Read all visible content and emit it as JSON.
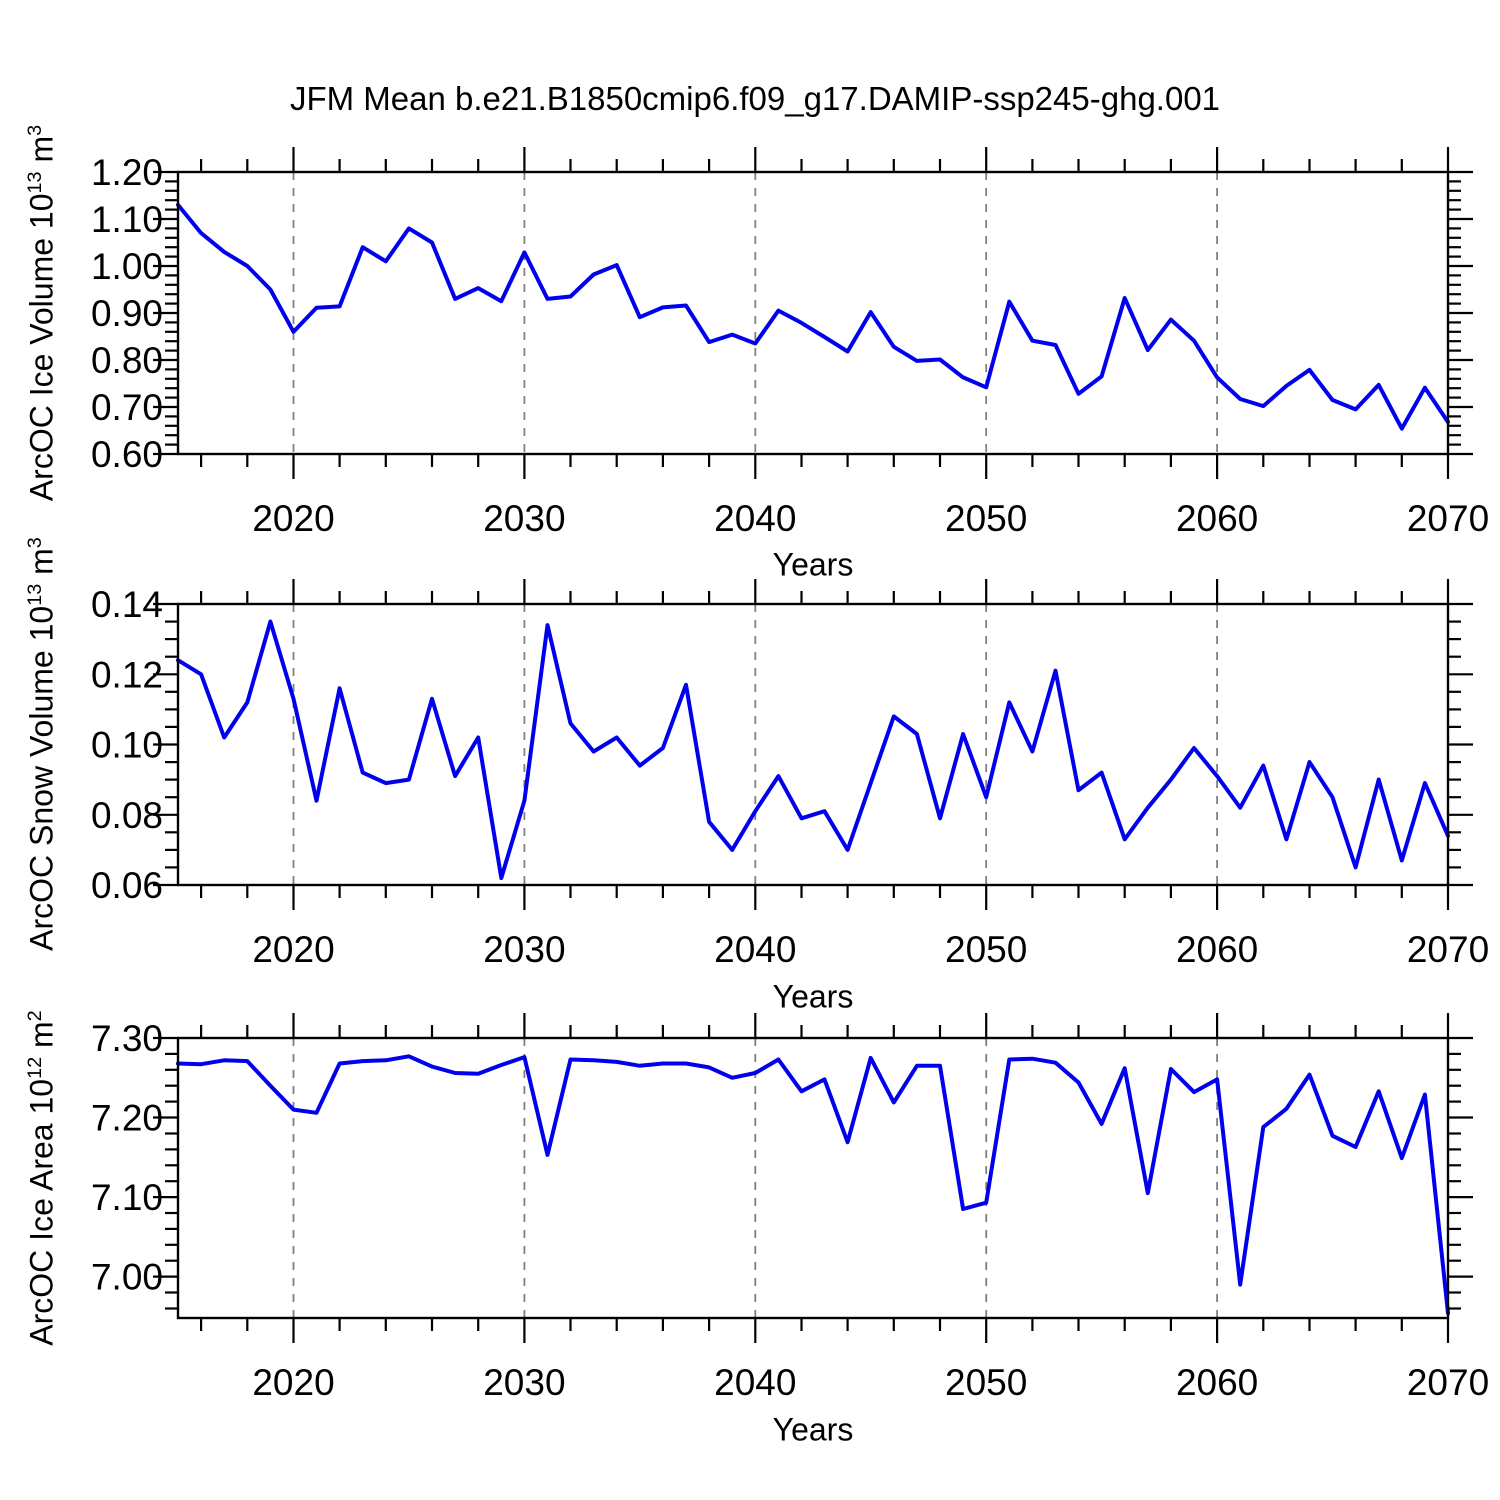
{
  "title": "JFM Mean b.e21.B1850cmip6.f09_g17.DAMIP-ssp245-ghg.001",
  "colors": {
    "line": "#0000ee",
    "grid": "#808080",
    "frame": "#000000",
    "text": "#000000"
  },
  "years": [
    2015,
    2016,
    2017,
    2018,
    2019,
    2020,
    2021,
    2022,
    2023,
    2024,
    2025,
    2026,
    2027,
    2028,
    2029,
    2030,
    2031,
    2032,
    2033,
    2034,
    2035,
    2036,
    2037,
    2038,
    2039,
    2040,
    2041,
    2042,
    2043,
    2044,
    2045,
    2046,
    2047,
    2048,
    2049,
    2050,
    2051,
    2052,
    2053,
    2054,
    2055,
    2056,
    2057,
    2058,
    2059,
    2060,
    2061,
    2062,
    2063,
    2064,
    2065,
    2066,
    2067,
    2068,
    2069,
    2070
  ],
  "chart_data": [
    {
      "type": "line",
      "name": "arcoc-ice-volume",
      "xlabel": "Years",
      "ylabel_text": "ArcOC Ice Volume 10^13 m^3",
      "ylabel_parts": {
        "base": "ArcOC Ice Volume 10",
        "exp": "13",
        "unit": " m",
        "unit_exp": "3"
      },
      "xlim": [
        2015,
        2070
      ],
      "ylim": [
        0.6,
        1.2
      ],
      "yticks": [
        0.6,
        0.7,
        0.8,
        0.9,
        1.0,
        1.1,
        1.2
      ],
      "ytick_labels": [
        "0.60",
        "0.70",
        "0.80",
        "0.90",
        "1.00",
        "1.10",
        "1.20"
      ],
      "y_minor_step": 0.02,
      "xticks": [
        2020,
        2030,
        2040,
        2050,
        2060,
        2070
      ],
      "xtick_labels": [
        "2020",
        "2030",
        "2040",
        "2050",
        "2060",
        "2070"
      ],
      "x_minor_step": 2,
      "grid_years": [
        2020,
        2030,
        2040,
        2050,
        2060
      ],
      "legend": "none",
      "grid": "vertical-dashed",
      "values": [
        1.13,
        1.07,
        1.03,
        1.0,
        0.95,
        0.86,
        0.911,
        0.914,
        1.04,
        1.01,
        1.08,
        1.05,
        0.93,
        0.953,
        0.925,
        1.029,
        0.93,
        0.935,
        0.982,
        1.002,
        0.891,
        0.912,
        0.916,
        0.838,
        0.854,
        0.835,
        0.905,
        0.879,
        0.849,
        0.818,
        0.902,
        0.828,
        0.798,
        0.801,
        0.763,
        0.742,
        0.924,
        0.841,
        0.832,
        0.728,
        0.765,
        0.932,
        0.821,
        0.886,
        0.841,
        0.763,
        0.717,
        0.702,
        0.745,
        0.779,
        0.715,
        0.695,
        0.747,
        0.654,
        0.741,
        0.668
      ]
    },
    {
      "type": "line",
      "name": "arcoc-snow-volume",
      "xlabel": "Years",
      "ylabel_text": "ArcOC Snow Volume 10^13 m^3",
      "ylabel_parts": {
        "base": "ArcOC Snow Volume 10",
        "exp": "13",
        "unit": " m",
        "unit_exp": "3"
      },
      "xlim": [
        2015,
        2070
      ],
      "ylim": [
        0.06,
        0.14
      ],
      "yticks": [
        0.06,
        0.08,
        0.1,
        0.12,
        0.14
      ],
      "ytick_labels": [
        "0.06",
        "0.08",
        "0.10",
        "0.12",
        "0.14"
      ],
      "y_minor_step": 0.005,
      "xticks": [
        2020,
        2030,
        2040,
        2050,
        2060,
        2070
      ],
      "xtick_labels": [
        "2020",
        "2030",
        "2040",
        "2050",
        "2060",
        "2070"
      ],
      "x_minor_step": 2,
      "grid_years": [
        2020,
        2030,
        2040,
        2050,
        2060
      ],
      "legend": "none",
      "grid": "vertical-dashed",
      "values": [
        0.124,
        0.12,
        0.102,
        0.112,
        0.135,
        0.113,
        0.084,
        0.116,
        0.092,
        0.089,
        0.09,
        0.113,
        0.091,
        0.102,
        0.062,
        0.084,
        0.134,
        0.106,
        0.098,
        0.102,
        0.094,
        0.099,
        0.117,
        0.078,
        0.07,
        0.081,
        0.091,
        0.079,
        0.081,
        0.07,
        0.089,
        0.108,
        0.103,
        0.079,
        0.103,
        0.085,
        0.112,
        0.098,
        0.121,
        0.087,
        0.092,
        0.073,
        0.082,
        0.09,
        0.099,
        0.091,
        0.082,
        0.094,
        0.073,
        0.095,
        0.085,
        0.065,
        0.09,
        0.067,
        0.089,
        0.074
      ]
    },
    {
      "type": "line",
      "name": "arcoc-ice-area",
      "xlabel": "Years",
      "ylabel_text": "ArcOC Ice Area 10^12 m^2",
      "ylabel_parts": {
        "base": "ArcOC Ice Area 10",
        "exp": "12",
        "unit": " m",
        "unit_exp": "2"
      },
      "xlim": [
        2015,
        2070
      ],
      "ylim": [
        6.948,
        7.3
      ],
      "yticks": [
        7.0,
        7.1,
        7.2,
        7.3
      ],
      "ytick_labels": [
        "7.00",
        "7.10",
        "7.20",
        "7.30"
      ],
      "y_minor_step": 0.02,
      "xticks": [
        2020,
        2030,
        2040,
        2050,
        2060,
        2070
      ],
      "xtick_labels": [
        "2020",
        "2030",
        "2040",
        "2050",
        "2060",
        "2070"
      ],
      "x_minor_step": 2,
      "grid_years": [
        2020,
        2030,
        2040,
        2050,
        2060
      ],
      "legend": "none",
      "grid": "vertical-dashed",
      "values": [
        7.268,
        7.267,
        7.272,
        7.271,
        7.24,
        7.21,
        7.206,
        7.268,
        7.271,
        7.272,
        7.277,
        7.264,
        7.256,
        7.255,
        7.266,
        7.276,
        7.153,
        7.273,
        7.272,
        7.27,
        7.265,
        7.268,
        7.268,
        7.263,
        7.25,
        7.256,
        7.273,
        7.233,
        7.248,
        7.169,
        7.275,
        7.219,
        7.265,
        7.265,
        7.085,
        7.093,
        7.273,
        7.274,
        7.269,
        7.244,
        7.192,
        7.262,
        7.105,
        7.261,
        7.232,
        7.248,
        6.99,
        7.188,
        7.211,
        7.254,
        7.177,
        7.163,
        7.233,
        7.149,
        7.229,
        6.954
      ]
    }
  ]
}
